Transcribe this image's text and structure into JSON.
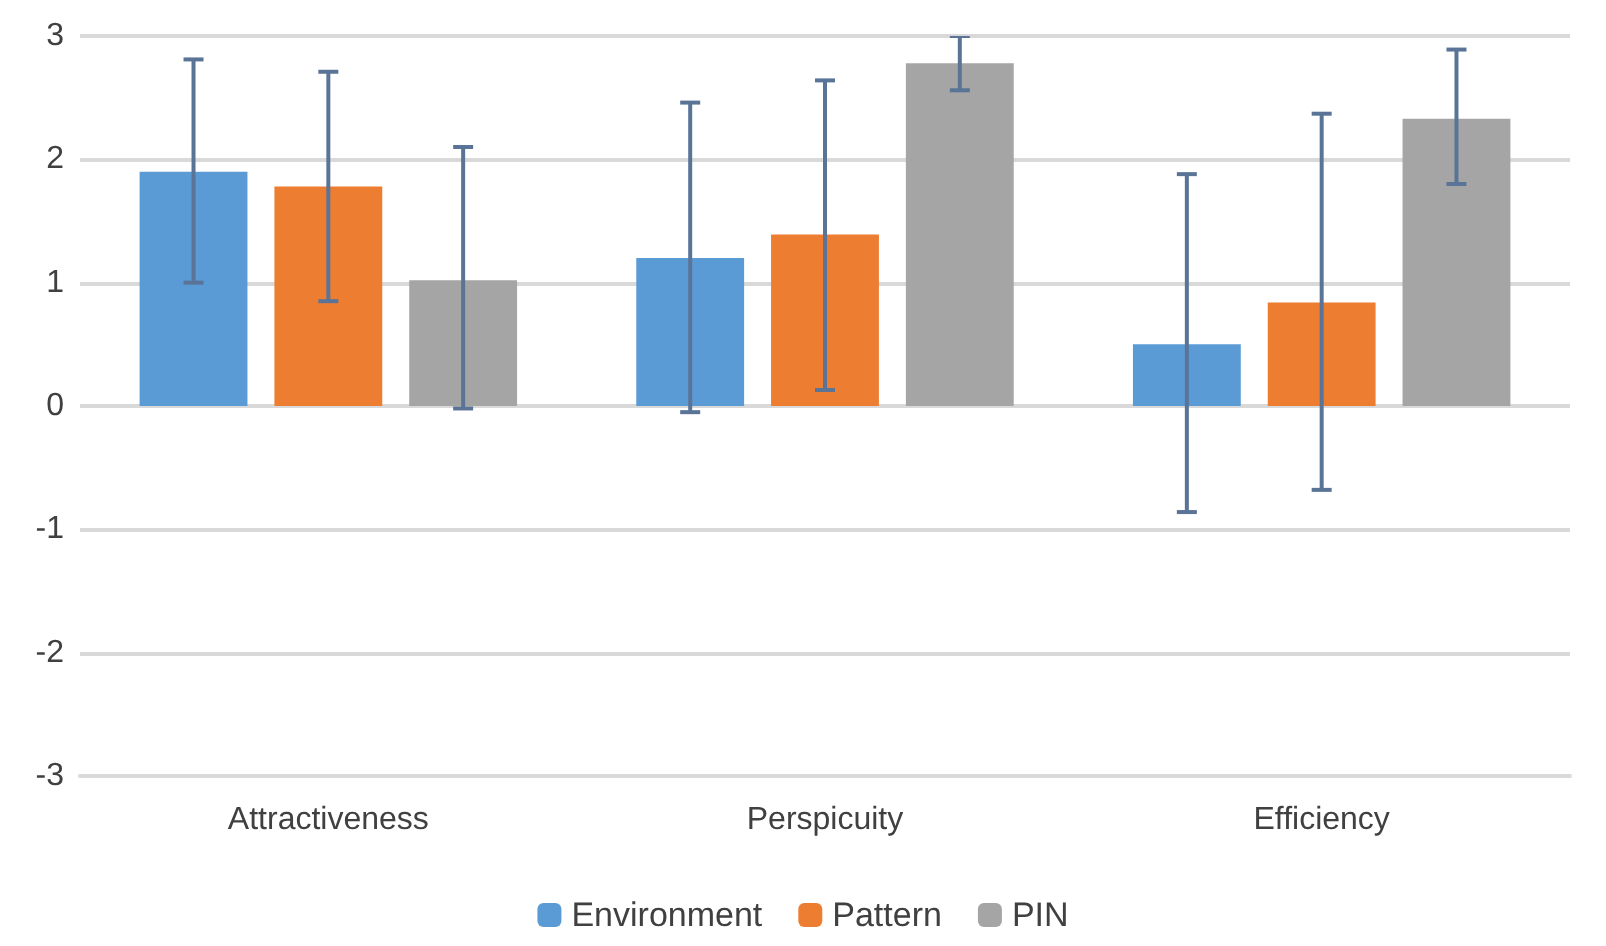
{
  "chart_data": {
    "type": "bar",
    "categories": [
      "Attractiveness",
      "Perspicuity",
      "Efficiency"
    ],
    "series": [
      {
        "name": "Environment",
        "color": "#5b9bd5",
        "values": [
          1.9,
          1.2,
          0.5
        ],
        "errors": [
          [
            1.0,
            2.81
          ],
          [
            -0.05,
            2.46
          ],
          [
            -0.86,
            1.88
          ]
        ]
      },
      {
        "name": "Pattern",
        "color": "#ed7d31",
        "values": [
          1.78,
          1.39,
          0.84
        ],
        "errors": [
          [
            0.85,
            2.71
          ],
          [
            0.13,
            2.64
          ],
          [
            -0.68,
            2.37
          ]
        ]
      },
      {
        "name": "PIN",
        "color": "#a5a5a5",
        "values": [
          1.02,
          2.78,
          2.33
        ],
        "errors": [
          [
            -0.02,
            2.1
          ],
          [
            2.56,
            3.0
          ],
          [
            1.8,
            2.89
          ]
        ]
      }
    ],
    "ylim": [
      -3,
      3
    ],
    "yticks": [
      -3,
      -2,
      -1,
      0,
      1,
      2,
      3
    ],
    "grid": "y",
    "legend": "bottom"
  }
}
